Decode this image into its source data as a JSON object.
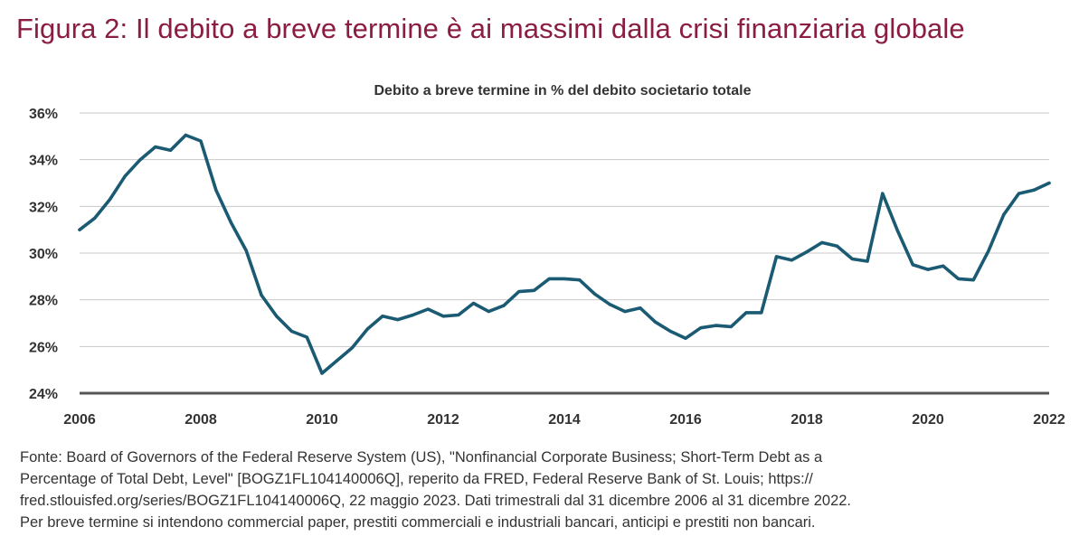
{
  "figure": {
    "title": "Figura 2: Il debito a breve termine è ai massimi dalla crisi finanziaria globale",
    "source_lines": [
      "Fonte: Board of Governors of the Federal Reserve System (US), \"Nonfinancial Corporate Business; Short-Term Debt as a",
      "Percentage of Total Debt, Level\" [BOGZ1FL104140006Q], reperito da FRED, Federal Reserve Bank of St. Louis; https://",
      "fred.stlouisfed.org/series/BOGZ1FL104140006Q, 22 maggio 2023. Dati trimestrali dal 31 dicembre 2006 al 31 dicembre 2022.",
      "Per breve termine si intendono commercial paper, prestiti commerciali e industriali bancari, anticipi e prestiti non bancari."
    ]
  },
  "colors": {
    "title": "#8b1d41",
    "line": "#1a5a72",
    "grid": "#c8c8c8",
    "axis": "#555555",
    "text": "#333333"
  },
  "chart_data": {
    "type": "line",
    "title": "Debito a breve termine in % del debito societario totale",
    "xlabel": "",
    "ylabel": "",
    "xlim": [
      2006,
      2022
    ],
    "ylim": [
      24,
      36
    ],
    "x_ticks": [
      2006,
      2008,
      2010,
      2012,
      2014,
      2016,
      2018,
      2020,
      2022
    ],
    "x_tick_labels": [
      "2006",
      "2008",
      "2010",
      "2012",
      "2014",
      "2016",
      "2018",
      "2020",
      "2022"
    ],
    "y_ticks": [
      24,
      26,
      28,
      30,
      32,
      34,
      36
    ],
    "y_tick_labels": [
      "24%",
      "26%",
      "28%",
      "30%",
      "32%",
      "34%",
      "36%"
    ],
    "grid": "horizontal",
    "legend": "none",
    "series": [
      {
        "x": [
          2006.0,
          2006.25,
          2006.5,
          2006.75,
          2007.0,
          2007.25,
          2007.5,
          2007.75,
          2008.0,
          2008.25,
          2008.5,
          2008.75,
          2009.0,
          2009.25,
          2009.5,
          2009.75,
          2010.0,
          2010.25,
          2010.5,
          2010.75,
          2011.0,
          2011.25,
          2011.5,
          2011.75,
          2012.0,
          2012.25,
          2012.5,
          2012.75,
          2013.0,
          2013.25,
          2013.5,
          2013.75,
          2014.0,
          2014.25,
          2014.5,
          2014.75,
          2015.0,
          2015.25,
          2015.5,
          2015.75,
          2016.0,
          2016.25,
          2016.5,
          2016.75,
          2017.0,
          2017.25,
          2017.5,
          2017.75,
          2018.0,
          2018.25,
          2018.5,
          2018.75,
          2019.0,
          2019.25,
          2019.5,
          2019.75,
          2020.0,
          2020.25,
          2020.5,
          2020.75,
          2021.0,
          2021.25,
          2021.5,
          2021.75,
          2022.0
        ],
        "values": [
          31.0,
          31.5,
          32.3,
          33.3,
          34.0,
          34.55,
          34.4,
          35.05,
          34.8,
          32.7,
          31.3,
          30.1,
          28.2,
          27.3,
          26.65,
          26.4,
          24.85,
          25.4,
          25.95,
          26.75,
          27.3,
          27.15,
          27.35,
          27.6,
          27.3,
          27.35,
          27.85,
          27.5,
          27.75,
          28.35,
          28.4,
          28.9,
          28.9,
          28.85,
          28.25,
          27.8,
          27.5,
          27.65,
          27.05,
          26.65,
          26.35,
          26.8,
          26.9,
          26.85,
          27.45,
          27.45,
          29.85,
          29.7,
          30.05,
          30.45,
          30.3,
          29.75,
          29.65,
          32.55,
          30.95,
          29.5,
          29.3,
          29.45,
          28.9,
          28.85,
          30.1,
          31.65,
          32.55,
          32.7,
          33.0
        ]
      }
    ]
  }
}
